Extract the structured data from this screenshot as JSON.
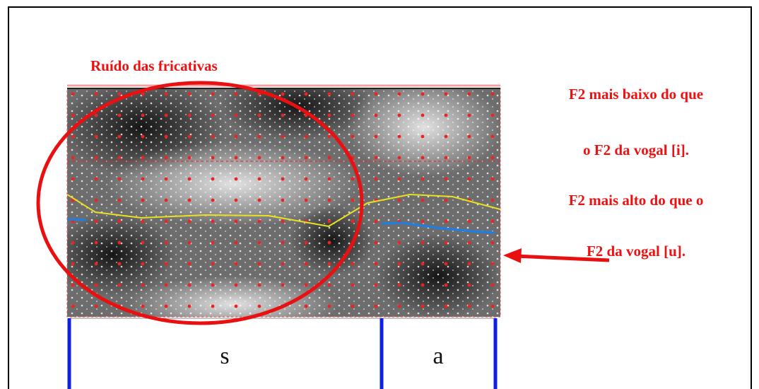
{
  "annotations": {
    "noise": "Ruído das fricativas",
    "line1": "F2 mais baixo do que",
    "line2": "o F2 da vogal [i].",
    "line3": "F2 mais alto do que o",
    "line4": "F2 da vogal [u]."
  },
  "segments": [
    "s",
    "a"
  ]
}
